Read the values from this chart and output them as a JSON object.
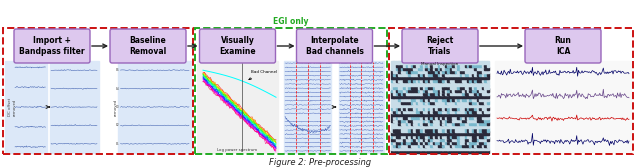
{
  "title": "Figure 2: Pre-processing",
  "steps": [
    "Import +\nBandpass filter",
    "Baseline\nRemoval",
    "Visually\nExamine",
    "Interpolate\nBad channels",
    "Reject\nTrials",
    "Run\nICA"
  ],
  "box_facecolor": "#ddc8ee",
  "box_edgecolor": "#9966bb",
  "red_dash_color": "#cc1111",
  "green_dash_color": "#22aa22",
  "arrow_color": "#222222",
  "background": "#ffffff",
  "fig_width": 6.4,
  "fig_height": 1.68,
  "dpi": 100,
  "caption": "Figure 2: Pre-processing"
}
